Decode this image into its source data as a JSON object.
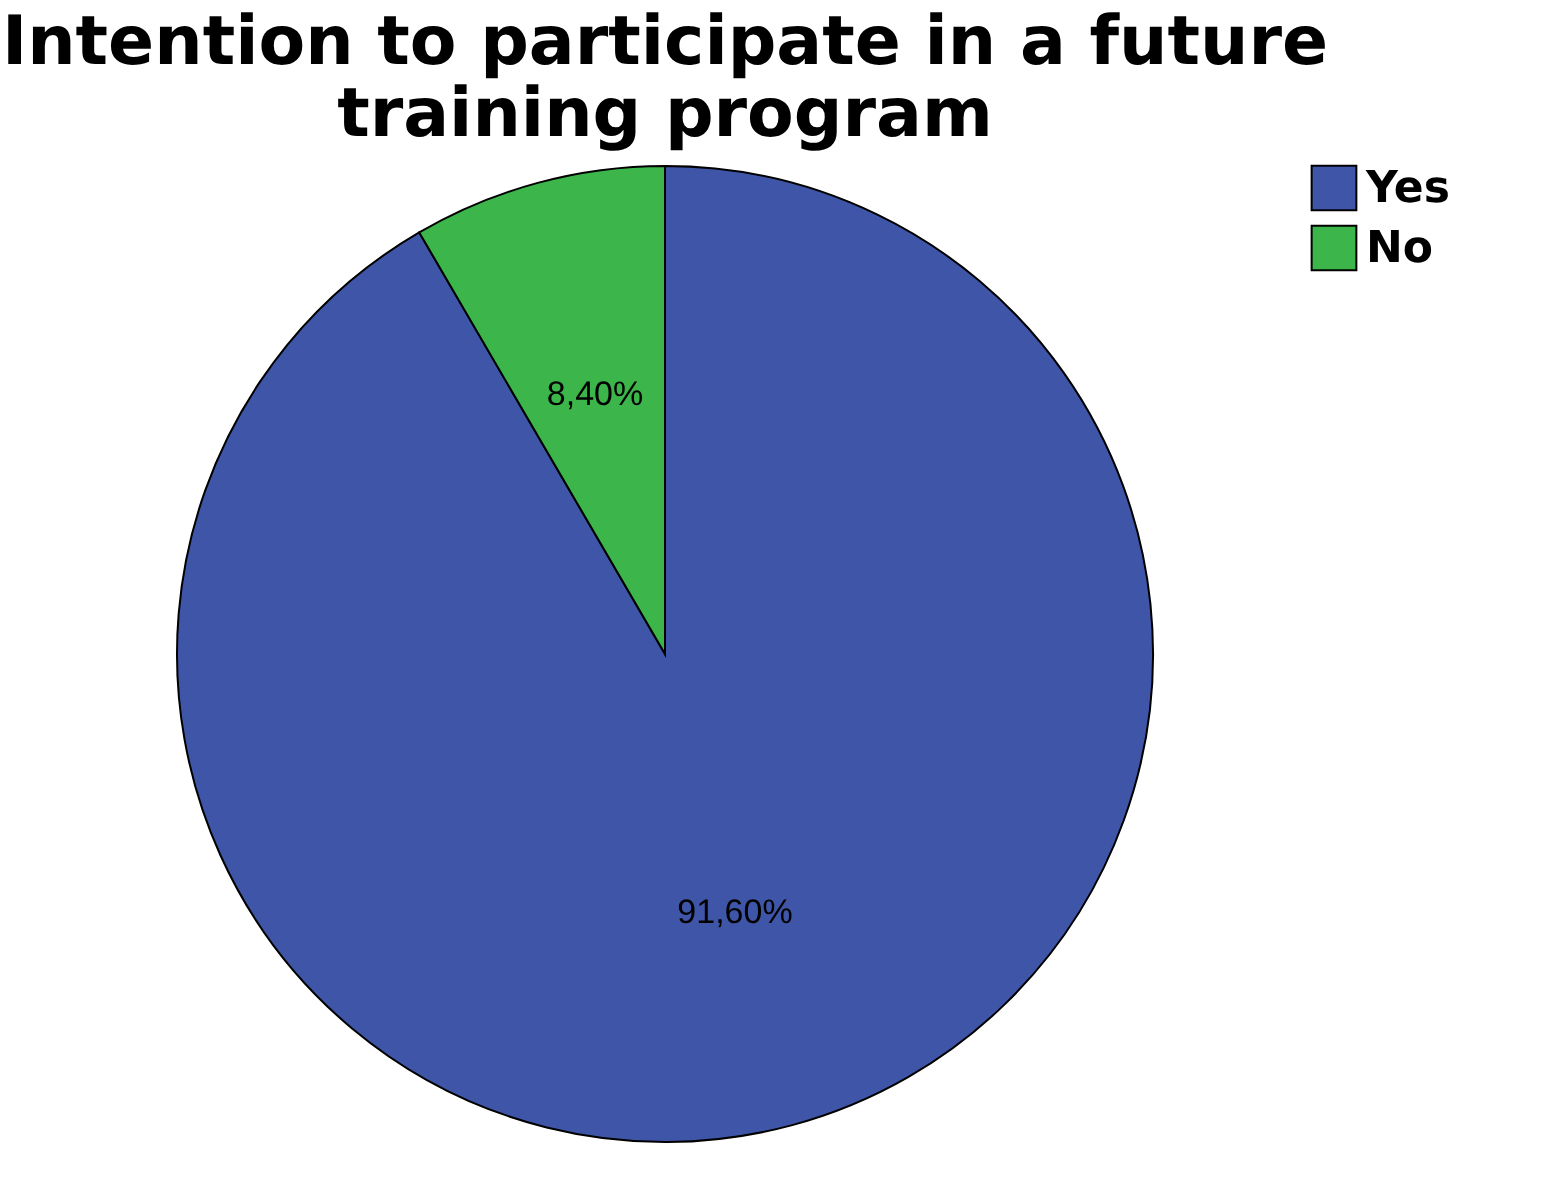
{
  "chart_data": {
    "type": "pie",
    "title": [
      "Intention to participate in a future",
      "training program"
    ],
    "categories": [
      "Yes",
      "No"
    ],
    "values": [
      91.6,
      8.4
    ],
    "colors": [
      "#3f56a8",
      "#3cb54a"
    ],
    "value_labels": [
      "91,60%",
      "8,40%"
    ],
    "legend": "top right"
  }
}
